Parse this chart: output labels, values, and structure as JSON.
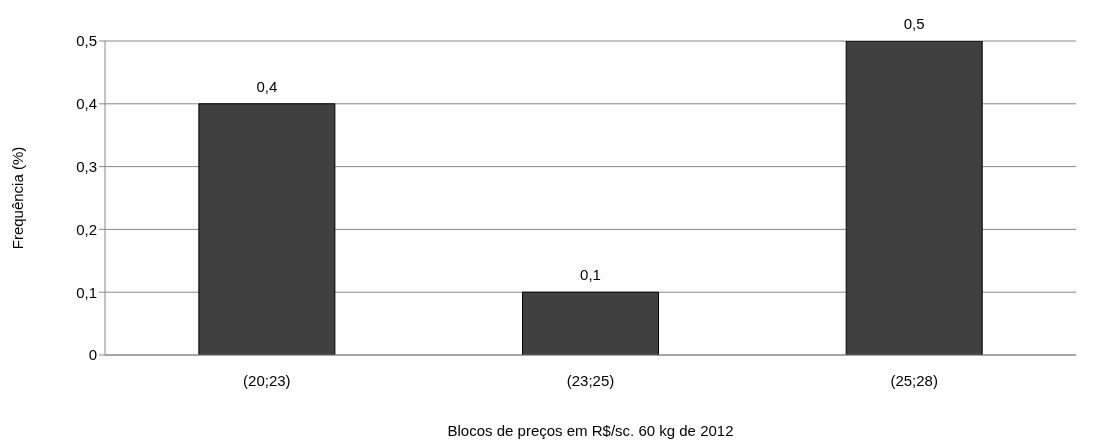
{
  "chart_data": {
    "type": "bar",
    "xlabel": "Blocos de preços em R$/sc. 60 kg de 2012",
    "ylabel": "Frequência (%)",
    "categories": [
      "(20;23)",
      "(23;25)",
      "(25;28)"
    ],
    "values": [
      0.4,
      0.1,
      0.5
    ],
    "value_labels": [
      "0,4",
      "0,1",
      "0,5"
    ],
    "color": "#404040",
    "ylim": [
      0,
      0.5
    ],
    "yticks": [
      {
        "value": 0,
        "label": "0"
      },
      {
        "value": 0.1,
        "label": "0,1"
      },
      {
        "value": 0.2,
        "label": "0,2"
      },
      {
        "value": 0.3,
        "label": "0,3"
      },
      {
        "value": 0.4,
        "label": "0,4"
      },
      {
        "value": 0.5,
        "label": "0,5"
      }
    ],
    "grid": "y"
  }
}
